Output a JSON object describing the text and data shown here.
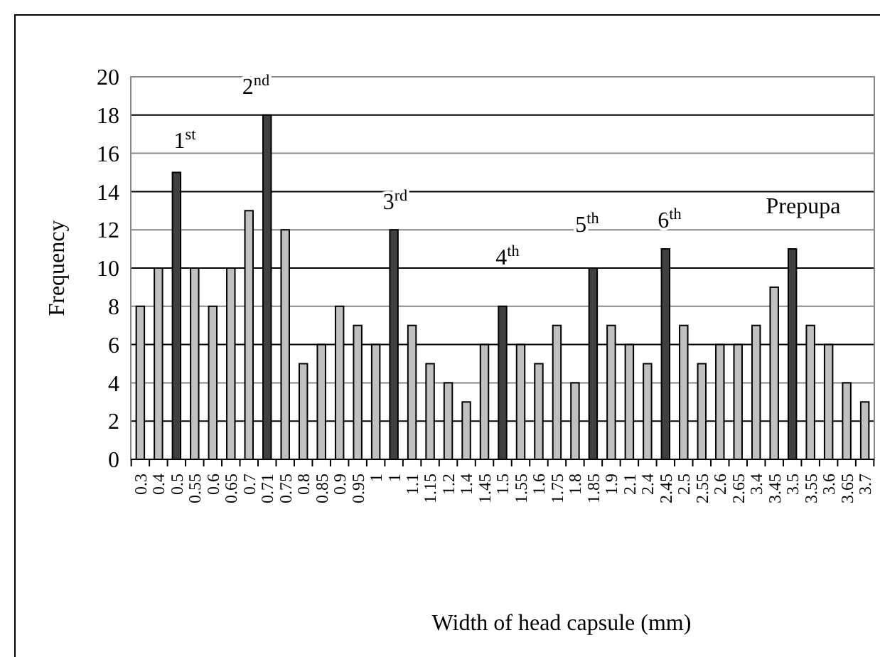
{
  "chart_data": {
    "type": "bar",
    "xlabel": "Width of head capsule (mm)",
    "ylabel": "Frequency",
    "categories": [
      "0.3",
      "0.4",
      "0.5",
      "0.55",
      "0.6",
      "0.65",
      "0.7",
      "0.71",
      "0.75",
      "0.8",
      "0.85",
      "0.9",
      "0.95",
      "1",
      "1",
      "1.1",
      "1.15",
      "1.2",
      "1.4",
      "1.45",
      "1.5",
      "1.55",
      "1.6",
      "1.75",
      "1.8",
      "1.85",
      "1.9",
      "2.1",
      "2.4",
      "2.45",
      "2.5",
      "2.55",
      "2.6",
      "2.65",
      "3.4",
      "3.45",
      "3.5",
      "3.55",
      "3.6",
      "3.65",
      "3.7"
    ],
    "values": [
      8,
      10,
      15,
      10,
      8,
      10,
      13,
      18,
      12,
      5,
      6,
      8,
      7,
      6,
      12,
      7,
      5,
      4,
      3,
      6,
      8,
      6,
      5,
      7,
      4,
      10,
      7,
      6,
      5,
      11,
      7,
      5,
      6,
      6,
      7,
      9,
      11,
      7,
      6,
      4,
      3
    ],
    "colors": [
      "#c0c0c0",
      "#c0c0c0",
      "#404040",
      "#c0c0c0",
      "#c0c0c0",
      "#c0c0c0",
      "#c0c0c0",
      "#404040",
      "#c0c0c0",
      "#c0c0c0",
      "#c0c0c0",
      "#c0c0c0",
      "#c0c0c0",
      "#c0c0c0",
      "#404040",
      "#c0c0c0",
      "#c0c0c0",
      "#c0c0c0",
      "#c0c0c0",
      "#c0c0c0",
      "#404040",
      "#c0c0c0",
      "#c0c0c0",
      "#c0c0c0",
      "#c0c0c0",
      "#404040",
      "#c0c0c0",
      "#c0c0c0",
      "#c0c0c0",
      "#404040",
      "#c0c0c0",
      "#c0c0c0",
      "#c0c0c0",
      "#c0c0c0",
      "#c0c0c0",
      "#c0c0c0",
      "#404040",
      "#c0c0c0",
      "#c0c0c0",
      "#c0c0c0",
      "#c0c0c0"
    ],
    "ylim": [
      0,
      20
    ],
    "yticks": [
      0,
      2,
      4,
      6,
      8,
      10,
      12,
      14,
      16,
      18,
      20
    ],
    "grid": "y",
    "annotations": [
      "1$^{st}$",
      "2$^{nd}$",
      "3$^{rd}$",
      "4$^{th}$",
      "5$^{th}$",
      "6$^{th}$",
      "Prepupa"
    ]
  }
}
